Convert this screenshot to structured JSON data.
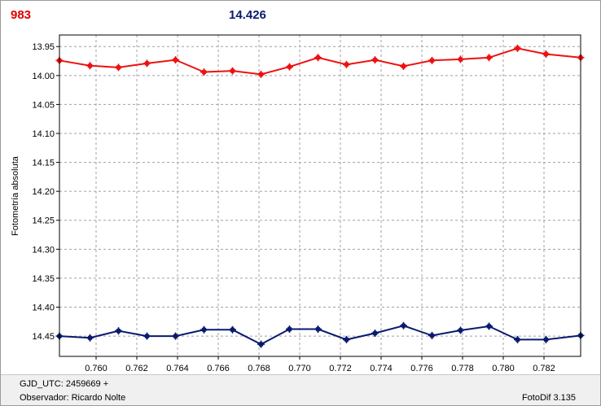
{
  "header": {
    "left_value": "983",
    "center_value": "14.426"
  },
  "footer": {
    "gjd": "GJD_UTC: 2459669 +",
    "observer": "Observador: Ricardo Nolte",
    "version": "FotoDif 3.135"
  },
  "colors": {
    "series1": "#ee1111",
    "series2": "#0a1a6e",
    "grid": "#a0a0a0"
  },
  "chart_data": {
    "type": "line",
    "ylabel": "Fotometría absoluta",
    "xlabel": "",
    "xlim": [
      0.7582,
      0.7838
    ],
    "ylim": [
      13.93,
      14.485
    ],
    "y_inverted": true,
    "grid": true,
    "x_ticks": [
      "0.760",
      "0.762",
      "0.764",
      "0.766",
      "0.768",
      "0.770",
      "0.772",
      "0.774",
      "0.776",
      "0.778",
      "0.780",
      "0.782"
    ],
    "y_ticks": [
      "13.95",
      "14.00",
      "14.05",
      "14.10",
      "14.15",
      "14.20",
      "14.25",
      "14.30",
      "14.35",
      "14.40",
      "14.45"
    ],
    "series": [
      {
        "color": "#ee1111",
        "x": [
          0.7582,
          0.7597,
          0.7611,
          0.7625,
          0.7639,
          0.7653,
          0.7667,
          0.7681,
          0.7695,
          0.7709,
          0.7723,
          0.7737,
          0.7751,
          0.7765,
          0.7779,
          0.7793,
          0.7807,
          0.7821,
          0.7838
        ],
        "y": [
          13.974,
          13.983,
          13.986,
          13.979,
          13.973,
          13.994,
          13.992,
          13.998,
          13.985,
          13.969,
          13.981,
          13.973,
          13.984,
          13.974,
          13.972,
          13.969,
          13.953,
          13.963,
          13.969
        ]
      },
      {
        "color": "#0a1a6e",
        "x": [
          0.7582,
          0.7597,
          0.7611,
          0.7625,
          0.7639,
          0.7653,
          0.7667,
          0.7681,
          0.7695,
          0.7709,
          0.7723,
          0.7737,
          0.7751,
          0.7765,
          0.7779,
          0.7793,
          0.7807,
          0.7821,
          0.7838
        ],
        "y": [
          14.45,
          14.453,
          14.441,
          14.45,
          14.45,
          14.439,
          14.439,
          14.464,
          14.438,
          14.438,
          14.456,
          14.445,
          14.432,
          14.449,
          14.44,
          14.433,
          14.456,
          14.456,
          14.449
        ]
      }
    ]
  }
}
